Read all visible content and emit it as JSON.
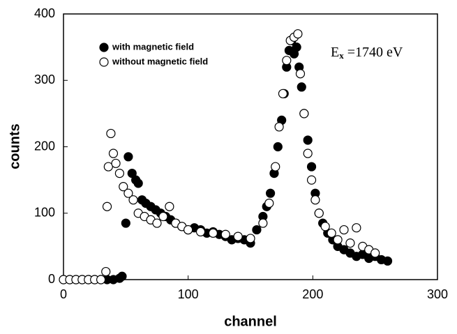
{
  "chart_data": {
    "type": "scatter",
    "xlabel": "channel",
    "ylabel": "counts",
    "annotation": [
      "E",
      "x",
      " =1740 eV"
    ],
    "xlim": [
      0,
      300
    ],
    "xticks": [
      0,
      100,
      200,
      300
    ],
    "ylim": [
      0,
      400
    ],
    "yticks": [
      0,
      100,
      200,
      300,
      400
    ],
    "grid": false,
    "legend": "upper left",
    "series": [
      {
        "name": "with magnetic field",
        "color": "#000000",
        "marker": "filled",
        "x": [
          0,
          5,
          10,
          15,
          20,
          25,
          30,
          35,
          40,
          45,
          47,
          50,
          52,
          55,
          58,
          60,
          63,
          66,
          70,
          74,
          78,
          82,
          86,
          90,
          95,
          100,
          105,
          110,
          115,
          120,
          125,
          130,
          135,
          140,
          145,
          150,
          155,
          160,
          163,
          166,
          169,
          172,
          175,
          177,
          179,
          181,
          183,
          185,
          187,
          189,
          191,
          193,
          196,
          199,
          202,
          205,
          208,
          212,
          216,
          220,
          225,
          230,
          235,
          240,
          245,
          250,
          255,
          260
        ],
        "values": [
          0,
          0,
          0,
          0,
          0,
          0,
          0,
          0,
          0,
          2,
          5,
          85,
          185,
          160,
          150,
          145,
          120,
          115,
          110,
          105,
          100,
          95,
          90,
          85,
          80,
          75,
          78,
          75,
          70,
          72,
          68,
          65,
          60,
          62,
          60,
          55,
          75,
          95,
          110,
          130,
          160,
          200,
          240,
          280,
          320,
          345,
          360,
          340,
          350,
          320,
          290,
          250,
          210,
          170,
          130,
          100,
          85,
          70,
          60,
          50,
          45,
          40,
          35,
          38,
          32,
          35,
          30,
          28
        ]
      },
      {
        "name": "without magnetic field",
        "color": "#000000",
        "marker": "open",
        "x": [
          0,
          5,
          10,
          15,
          20,
          25,
          30,
          34,
          35,
          36,
          38,
          40,
          42,
          45,
          48,
          52,
          56,
          60,
          65,
          70,
          75,
          80,
          85,
          90,
          95,
          100,
          110,
          120,
          130,
          140,
          150,
          160,
          165,
          170,
          173,
          176,
          179,
          182,
          185,
          188,
          190,
          193,
          196,
          199,
          202,
          205,
          210,
          215,
          220,
          225,
          230,
          235,
          240,
          245,
          250
        ],
        "values": [
          0,
          0,
          0,
          0,
          0,
          0,
          0,
          12,
          110,
          170,
          220,
          190,
          175,
          160,
          140,
          130,
          120,
          100,
          95,
          90,
          85,
          95,
          110,
          85,
          80,
          75,
          72,
          70,
          68,
          65,
          62,
          85,
          115,
          170,
          230,
          280,
          330,
          360,
          365,
          370,
          310,
          250,
          190,
          150,
          120,
          100,
          80,
          70,
          60,
          75,
          55,
          78,
          50,
          45,
          40
        ]
      }
    ]
  }
}
